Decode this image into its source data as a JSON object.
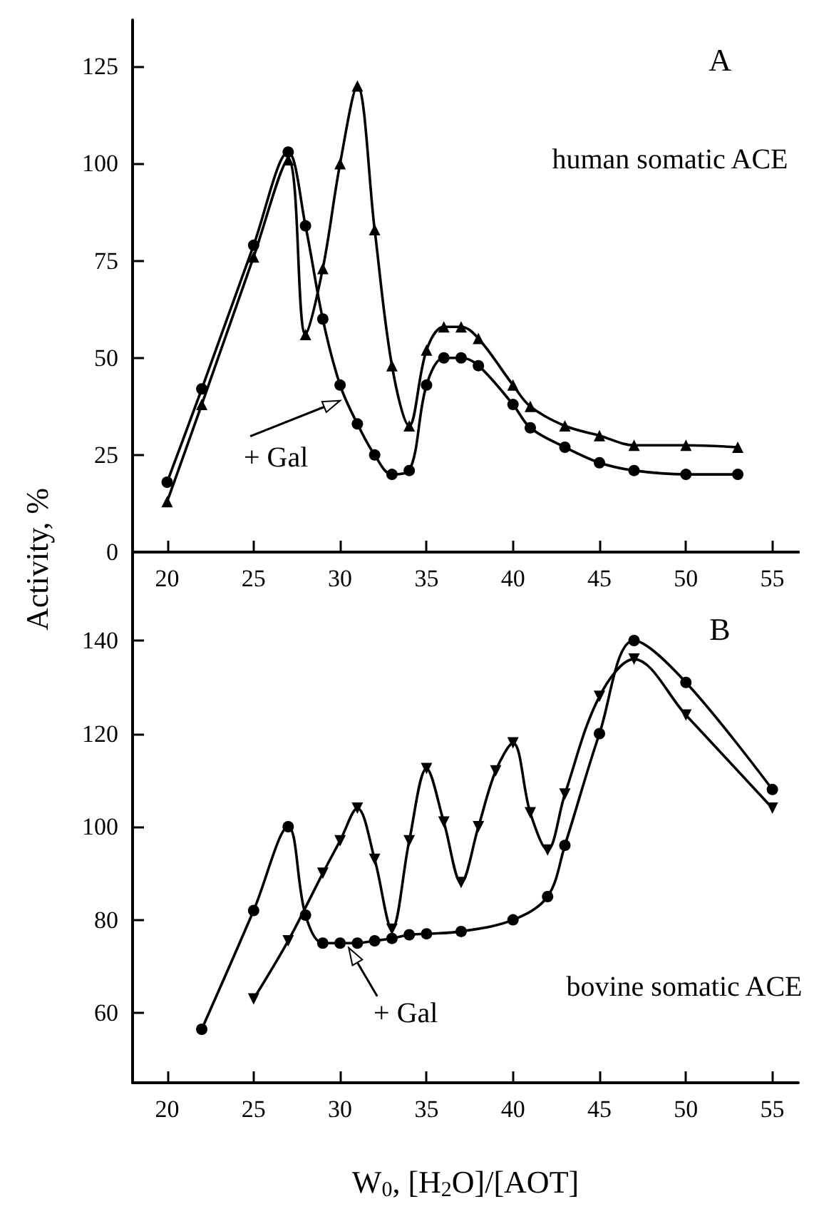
{
  "chart_data": [
    {
      "type": "line",
      "ylabel": "Activity, %",
      "x": [
        20,
        22,
        25,
        27,
        28,
        29,
        30,
        31,
        32,
        33,
        34,
        35,
        36,
        37,
        38,
        40,
        41,
        43,
        45,
        47,
        50,
        53
      ],
      "series": [
        {
          "color": "#000000",
          "marker": "circle",
          "values": [
            18,
            42,
            79,
            103,
            84,
            60,
            43,
            33,
            25,
            20,
            21,
            43,
            50,
            50,
            48,
            38,
            32,
            27,
            23,
            21,
            20,
            20
          ]
        },
        {
          "color": "#000000",
          "marker": "triangle",
          "values": [
            13,
            38,
            76,
            101,
            56,
            73,
            100,
            120,
            83,
            48,
            32.5,
            52,
            58,
            58,
            55,
            43,
            37.5,
            32.5,
            30,
            27.5,
            27.5,
            27
          ]
        }
      ],
      "xlim": [
        18,
        56.5
      ],
      "xticks": [
        20,
        25,
        30,
        35,
        40,
        45,
        50,
        55
      ],
      "ylim": [
        0,
        137
      ],
      "yticks": [
        0,
        25,
        50,
        75,
        100,
        125
      ],
      "line_style": "solid",
      "annotations": [
        "A",
        "human somatic ACE",
        {
          "text": "+ Gal",
          "x": 30,
          "y": 39
        }
      ]
    },
    {
      "type": "line",
      "xlabel": "W$_{0}$, [H$_{2}$O]/[AOT]",
      "series": [
        {
          "color": "#000000",
          "marker": "circle",
          "x": [
            22,
            25,
            27,
            28,
            29,
            30,
            31,
            32,
            33,
            34,
            35,
            37,
            40,
            42,
            43,
            45,
            47,
            50,
            55
          ],
          "values": [
            56.5,
            82,
            100,
            81,
            75,
            75,
            75,
            75.5,
            76,
            76.8,
            77,
            77.5,
            80,
            85,
            96,
            120,
            140,
            131,
            108
          ]
        },
        {
          "color": "#000000",
          "marker": "triangle-down",
          "x": [
            25,
            27,
            29,
            30,
            31,
            32,
            33,
            34,
            35,
            36,
            37,
            38,
            39,
            40,
            41,
            42,
            43,
            45,
            47,
            50,
            55
          ],
          "values": [
            63,
            75.5,
            90,
            97,
            104,
            93,
            78,
            97,
            112.5,
            101,
            88,
            100,
            112,
            118,
            103,
            95,
            107,
            128,
            136,
            124,
            104
          ]
        }
      ],
      "xlim": [
        18,
        56.5
      ],
      "xticks": [
        20,
        25,
        30,
        35,
        40,
        45,
        50,
        55
      ],
      "ylim": [
        45,
        159
      ],
      "yticks": [
        60,
        80,
        100,
        120,
        140
      ],
      "line_style": "solid",
      "annotations": [
        "B",
        "bovine somatic ACE",
        {
          "text": "+ Gal",
          "x": 30.5,
          "y": 74
        }
      ]
    }
  ]
}
